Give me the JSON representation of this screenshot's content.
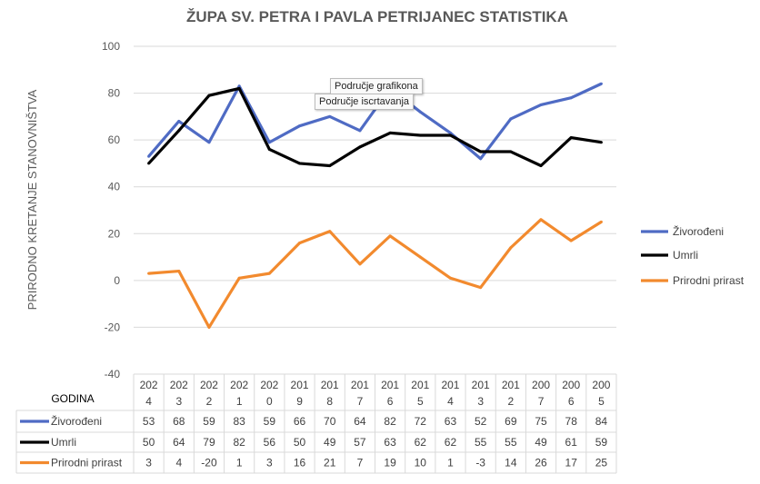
{
  "chart_data": {
    "type": "line",
    "title": "ŽUPA SV. PETRA I PAVLA PETRIJANEC STATISTIKA",
    "xlabel": "GODINA",
    "ylabel": "PRIRODNO KRETANJE STANOVNIŠTVA",
    "ylim": [
      -40,
      100
    ],
    "yticks": [
      "100",
      "80",
      "60",
      "40",
      "20",
      "0",
      "-20",
      "-40"
    ],
    "grid": true,
    "legend": "right",
    "categories": [
      "2024",
      "2023",
      "2022",
      "2021",
      "2020",
      "2019",
      "2018",
      "2017",
      "2016",
      "2015",
      "2014",
      "2013",
      "2012",
      "2007",
      "2006",
      "2005"
    ],
    "series": [
      {
        "name": "Živorođeni",
        "color": "#4f6bc4",
        "values": [
          53,
          68,
          59,
          83,
          59,
          66,
          70,
          64,
          82,
          72,
          63,
          52,
          69,
          75,
          78,
          84
        ]
      },
      {
        "name": "Umrli",
        "color": "#000000",
        "values": [
          50,
          64,
          79,
          82,
          56,
          50,
          49,
          57,
          63,
          62,
          62,
          55,
          55,
          49,
          61,
          59
        ]
      },
      {
        "name": "Prirodni prirast",
        "color": "#f28a2e",
        "values": [
          3,
          4,
          -20,
          1,
          3,
          16,
          21,
          7,
          19,
          10,
          1,
          -3,
          14,
          26,
          17,
          25
        ]
      }
    ],
    "data_table": true
  },
  "tooltips": {
    "chart_area": "Područje grafikona",
    "plot_area": "Područje iscrtavanja"
  }
}
